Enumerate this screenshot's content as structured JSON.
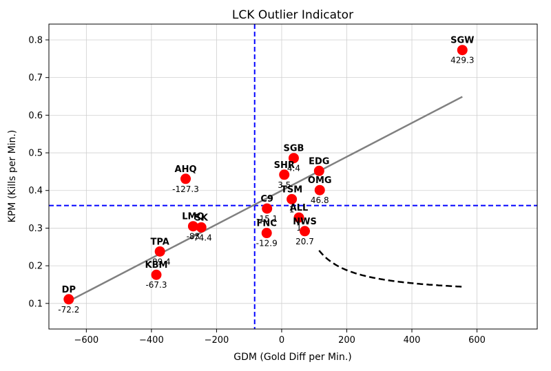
{
  "chart_data": {
    "type": "scatter",
    "title": "LCK Outlier Indicator",
    "xlabel": "GDM (Gold Diff per Min.)",
    "ylabel": "KPM (Kills per Min.)",
    "xlim": [
      -715,
      785
    ],
    "ylim": [
      0.032,
      0.842
    ],
    "xticks": [
      -600,
      -400,
      -200,
      0,
      200,
      400,
      600
    ],
    "yticks": [
      0.1,
      0.2,
      0.3,
      0.4,
      0.5,
      0.6,
      0.7,
      0.8
    ],
    "xtick_labels": [
      "−600",
      "−400",
      "−200",
      "0",
      "200",
      "400",
      "600"
    ],
    "ytick_labels": [
      "0.1",
      "0.2",
      "0.3",
      "0.4",
      "0.5",
      "0.6",
      "0.7",
      "0.8"
    ],
    "grid": true,
    "point_color": "#ff0000",
    "points": [
      {
        "name": "SGW",
        "x": 555,
        "y": 0.773,
        "value": "429.3"
      },
      {
        "name": "SGB",
        "x": 37,
        "y": 0.486,
        "value": "4.4"
      },
      {
        "name": "SHR",
        "x": 8,
        "y": 0.442,
        "value": "3.5"
      },
      {
        "name": "EDG",
        "x": 115,
        "y": 0.452,
        "value": ""
      },
      {
        "name": "OMG",
        "x": 117,
        "y": 0.401,
        "value": "46.8"
      },
      {
        "name": "TSM",
        "x": 31,
        "y": 0.377,
        "value": "1"
      },
      {
        "name": "C9",
        "x": -45,
        "y": 0.352,
        "value": "-15.1"
      },
      {
        "name": "ALL",
        "x": 53,
        "y": 0.328,
        "value": "1"
      },
      {
        "name": "NWS",
        "x": 71,
        "y": 0.292,
        "value": "20.7"
      },
      {
        "name": "FNC",
        "x": -46,
        "y": 0.287,
        "value": "-12.9"
      },
      {
        "name": "AHQ",
        "x": -295,
        "y": 0.431,
        "value": "-127.3"
      },
      {
        "name": "LMQ",
        "x": -272,
        "y": 0.305,
        "value": "-83"
      },
      {
        "name": "SK",
        "x": -247,
        "y": 0.302,
        "value": "-74.4"
      },
      {
        "name": "TPA",
        "x": -374,
        "y": 0.238,
        "value": "-89.4"
      },
      {
        "name": "KBM",
        "x": -385,
        "y": 0.176,
        "value": "-67.3"
      },
      {
        "name": "DP",
        "x": -654,
        "y": 0.111,
        "value": "-72.2"
      }
    ],
    "regression_line": {
      "x": [
        -654,
        555
      ],
      "y": [
        0.106,
        0.649
      ],
      "color": "#808080"
    },
    "mean_lines": {
      "x": -83,
      "y": 0.36,
      "color": "#0000ff",
      "style": "dashed"
    },
    "threshold_curve": {
      "k": 90,
      "x_offset": -83,
      "y_offset": 0.36,
      "x_range": [
        115,
        555
      ],
      "color": "#000000",
      "style": "dashed"
    }
  }
}
